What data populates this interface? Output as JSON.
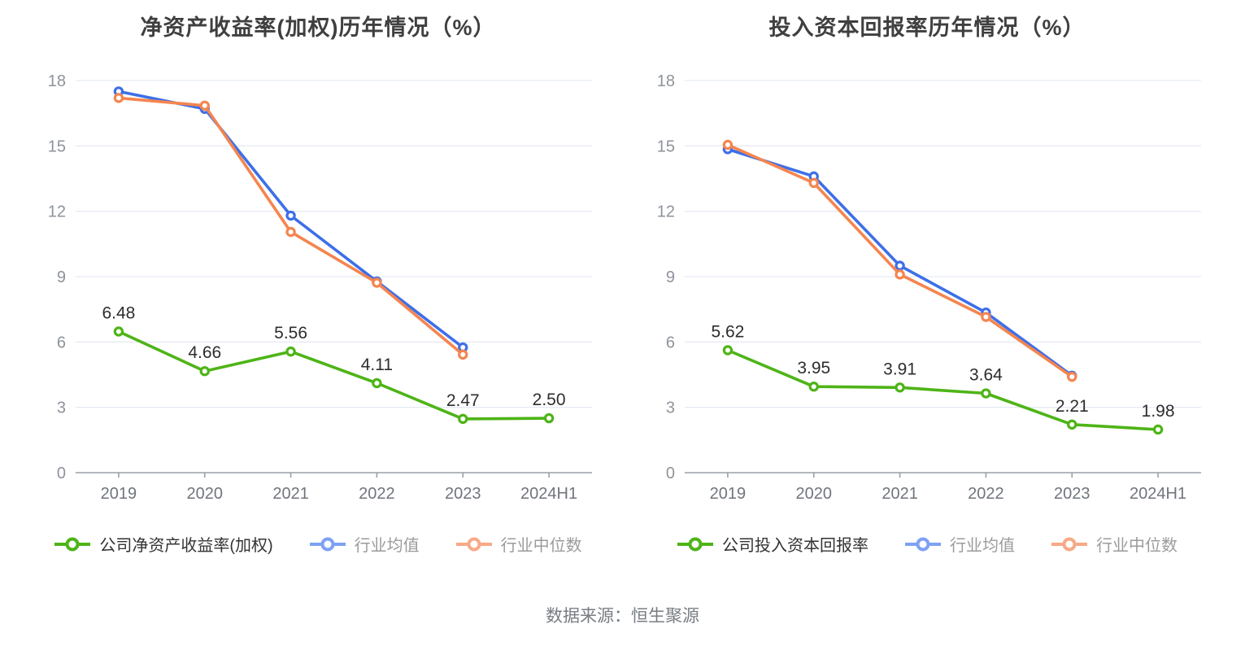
{
  "footer": {
    "source_label": "数据来源：恒生聚源"
  },
  "chart_data": [
    {
      "type": "line",
      "title": "净资产收益率(加权)历年情况（%）",
      "categories": [
        "2019",
        "2020",
        "2021",
        "2022",
        "2023",
        "2024H1"
      ],
      "ylim": [
        0,
        18
      ],
      "yticks": [
        0,
        3,
        6,
        9,
        12,
        15,
        18
      ],
      "grid": true,
      "legend_position": "bottom",
      "series": [
        {
          "name": "公司净资产收益率(加权)",
          "color": "#4eb417",
          "legend_color": "#4eb417",
          "values": [
            6.48,
            4.66,
            5.56,
            4.11,
            2.47,
            2.5
          ],
          "labels_shown": true
        },
        {
          "name": "行业均值",
          "color": "#3d6fe8",
          "legend_color": "#7ea1f4",
          "values": [
            17.5,
            16.7,
            11.8,
            8.78,
            5.75,
            null
          ],
          "labels_shown": false
        },
        {
          "name": "行业中位数",
          "color": "#f5854f",
          "legend_color": "#f8a987",
          "values": [
            17.2,
            16.85,
            11.05,
            8.72,
            5.42,
            null
          ],
          "labels_shown": false
        }
      ]
    },
    {
      "type": "line",
      "title": "投入资本回报率历年情况（%）",
      "categories": [
        "2019",
        "2020",
        "2021",
        "2022",
        "2023",
        "2024H1"
      ],
      "ylim": [
        0,
        18
      ],
      "yticks": [
        0,
        3,
        6,
        9,
        12,
        15,
        18
      ],
      "grid": true,
      "legend_position": "bottom",
      "series": [
        {
          "name": "公司投入资本回报率",
          "color": "#4eb417",
          "legend_color": "#4eb417",
          "values": [
            5.62,
            3.95,
            3.91,
            3.64,
            2.21,
            1.98
          ],
          "labels_shown": true
        },
        {
          "name": "行业均值",
          "color": "#3d6fe8",
          "legend_color": "#7ea1f4",
          "values": [
            14.85,
            13.6,
            9.5,
            7.35,
            4.45,
            null
          ],
          "labels_shown": false
        },
        {
          "name": "行业中位数",
          "color": "#f5854f",
          "legend_color": "#f8a987",
          "values": [
            15.05,
            13.3,
            9.1,
            7.15,
            4.4,
            null
          ],
          "labels_shown": false
        }
      ]
    }
  ],
  "style_colors": {
    "gridline": "#e6eaf2",
    "axis_line": "#9aa0a8",
    "y_tick_label": "#8e939b",
    "x_tick_label": "#70757d",
    "value_label": "#2d2d2d"
  }
}
